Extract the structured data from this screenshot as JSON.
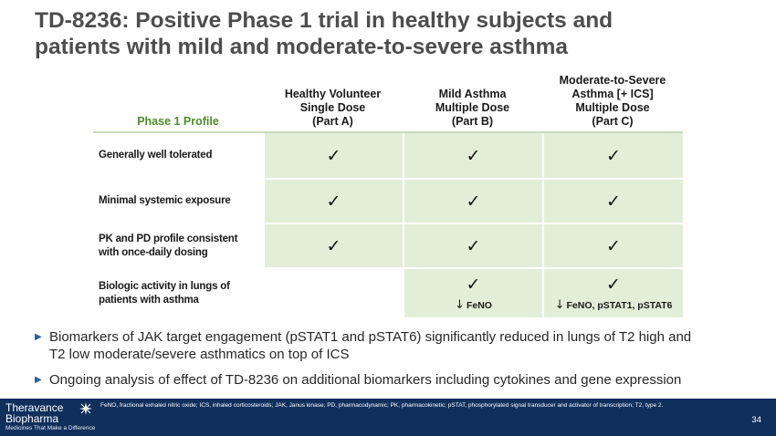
{
  "title": {
    "line1": "TD-8236: Positive Phase 1 trial in healthy subjects and",
    "line2": "patients with mild and moderate-to-severe asthma"
  },
  "table": {
    "profile_header": "Phase 1 Profile",
    "columns": [
      {
        "lines": [
          "Healthy Volunteer",
          "Single Dose",
          "(Part A)"
        ]
      },
      {
        "lines": [
          "Mild Asthma",
          "Multiple Dose",
          "(Part B)"
        ]
      },
      {
        "lines": [
          "Moderate-to-Severe",
          "Asthma [+ ICS]",
          "Multiple Dose",
          "(Part C)"
        ]
      }
    ],
    "rows": [
      {
        "label": [
          "Generally well tolerated"
        ]
      },
      {
        "label": [
          "Minimal systemic exposure"
        ]
      },
      {
        "label": [
          "PK and PD profile consistent",
          "with once-daily dosing"
        ]
      },
      {
        "label": [
          "Biologic activity in lungs of",
          "patients with asthma"
        ]
      }
    ],
    "check": "✓",
    "down_arrow": "↓",
    "notes": {
      "part_b": "FeNO",
      "part_c": "FeNO, pSTAT1, pSTAT6"
    }
  },
  "bullets": [
    {
      "lines": [
        "Biomarkers of JAK target engagement (pSTAT1 and pSTAT6) significantly reduced in lungs of T2 high and",
        "T2 low moderate/severe asthmatics on top of ICS"
      ]
    },
    {
      "lines": [
        "Ongoing analysis of effect of TD-8236 on additional biomarkers including cytokines and gene expression"
      ]
    }
  ],
  "footer": {
    "logo_line1": "Theravance",
    "logo_line2": "Biopharma",
    "tagline": "Medicines That Make a Difference",
    "footnote": "FeNO,  fractional exhaled nitric oxide; ICS,  inhaled corticosteroids; JAK, Janus kinase; PD,  pharmacodynamic; PK,  pharmacokinetic; pSTAT,  phosphorylated signal transducer and activator of transcription; T2, type 2.",
    "page_number": "34"
  },
  "colors": {
    "title": "#4d4d4d",
    "profile_header": "#4e8c2a",
    "cell_fill": "#e3eed8",
    "bullet_marker": "#2a5fa3",
    "footer_bg": "#0f2f5c"
  },
  "icons": {
    "bullet": "triangle-bullet-icon",
    "logo": "theravance-star-logo"
  }
}
